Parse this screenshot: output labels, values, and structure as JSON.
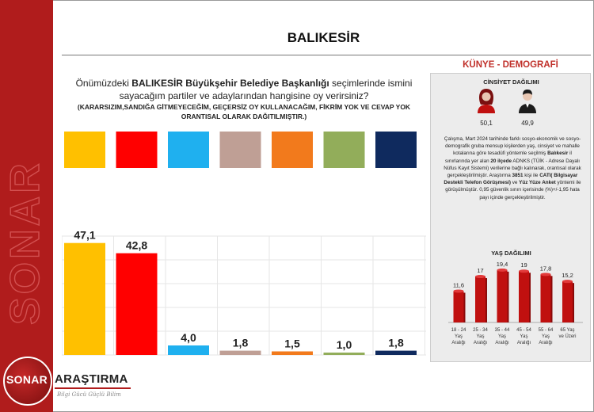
{
  "title": "BALIKESİR",
  "question": {
    "pre": "Önümüzdeki ",
    "bold": "BALIKESİR Büyükşehir Belediye Başkanlığı",
    "post": " seçimlerinde ismini sayacağım partiler ve adaylarından hangisine oy verirsiniz?",
    "note": "(KARARSIZIM,SANDIĞA GİTMEYECEĞİM, GEÇERSİZ OY KULLANACAĞIM, FİKRİM YOK VE CEVAP YOK ORANTISAL OLARAK DAĞITILMIŞTIR.)"
  },
  "chart_data": [
    {
      "type": "bar",
      "categories": [
        "",
        "",
        "",
        "",
        "",
        "",
        ""
      ],
      "values": [
        47.1,
        42.8,
        4.0,
        1.8,
        1.5,
        1.0,
        1.8
      ],
      "value_labels": [
        "47,1",
        "42,8",
        "4,0",
        "1,8",
        "1,5",
        "1,0",
        "1,8"
      ],
      "colors": [
        "#ffc000",
        "#ff0000",
        "#1fb0ef",
        "#bf9f95",
        "#f27a1c",
        "#92ad5a",
        "#0f2a5e"
      ],
      "ylim": [
        0,
        50
      ],
      "grid": true,
      "legend": "none"
    },
    {
      "type": "bar",
      "title": "YAŞ DAĞILIMI",
      "categories": [
        [
          "18 - 24",
          "Yaş",
          "Aralığı"
        ],
        [
          "25 - 34",
          "Yaş",
          "Aralığı"
        ],
        [
          "35 - 44",
          "Yaş",
          "Aralığı"
        ],
        [
          "45 - 54",
          "Yaş",
          "Aralığı"
        ],
        [
          "55 - 64",
          "Yaş",
          "Aralığı"
        ],
        [
          "65 Yaş",
          "ve Üzeri"
        ]
      ],
      "values": [
        11.6,
        17,
        19.4,
        19,
        17.8,
        15.2
      ],
      "value_labels": [
        "11,6",
        "17",
        "19,4",
        "19",
        "17,8",
        "15,2"
      ],
      "ylim": [
        0,
        22
      ],
      "color": "#c0100f"
    }
  ],
  "demographics": {
    "header": "KÜNYE - DEMOGRAFİ",
    "gender_title": "CİNSİYET DAĞILIMI",
    "female": "50,1",
    "male": "49,9",
    "method_parts": [
      {
        "t": "Çalışma, Mart 2024 tarihinde farklı sosyo-ekonomik ve sosyo-demografik gruba mensup kişilerden yaş, cinsiyet ve mahalle kotalarına göre tesadüfi yöntemle seçilmiş ",
        "b": false
      },
      {
        "t": "Balıkesir",
        "b": true
      },
      {
        "t": " il sınırlarında yer alan ",
        "b": false
      },
      {
        "t": "20 ilçede",
        "b": true
      },
      {
        "t": " ADNKS (TÜİK - Adrese Dayalı Nüfus Kayıt Sistemi) verilerine bağlı kalınarak, orantısal olarak gerçekleştirilmiştir. Araştırma ",
        "b": false
      },
      {
        "t": "3851",
        "b": true
      },
      {
        "t": " kişi ile ",
        "b": false
      },
      {
        "t": "CATI( Bilgisayar Destekli Telefon Görüşmesi)",
        "b": true
      },
      {
        "t": " ve ",
        "b": false
      },
      {
        "t": "Yüz Yüze Anket",
        "b": true
      },
      {
        "t": " yöntemi ile görüşülmüştür. 0,95 güvenlik sınırı içerisinde (%)+/-1,95 hata payı içinde gerçekleştirilmiştir.",
        "b": false
      }
    ]
  },
  "brand": {
    "watermark": "SONAR",
    "logo_left": "SONAR",
    "logo_right": "ARAŞTIRMA",
    "tagline": "Bilgi Gücü Güçlü Bilim",
    "accent": "#b01c1c"
  }
}
